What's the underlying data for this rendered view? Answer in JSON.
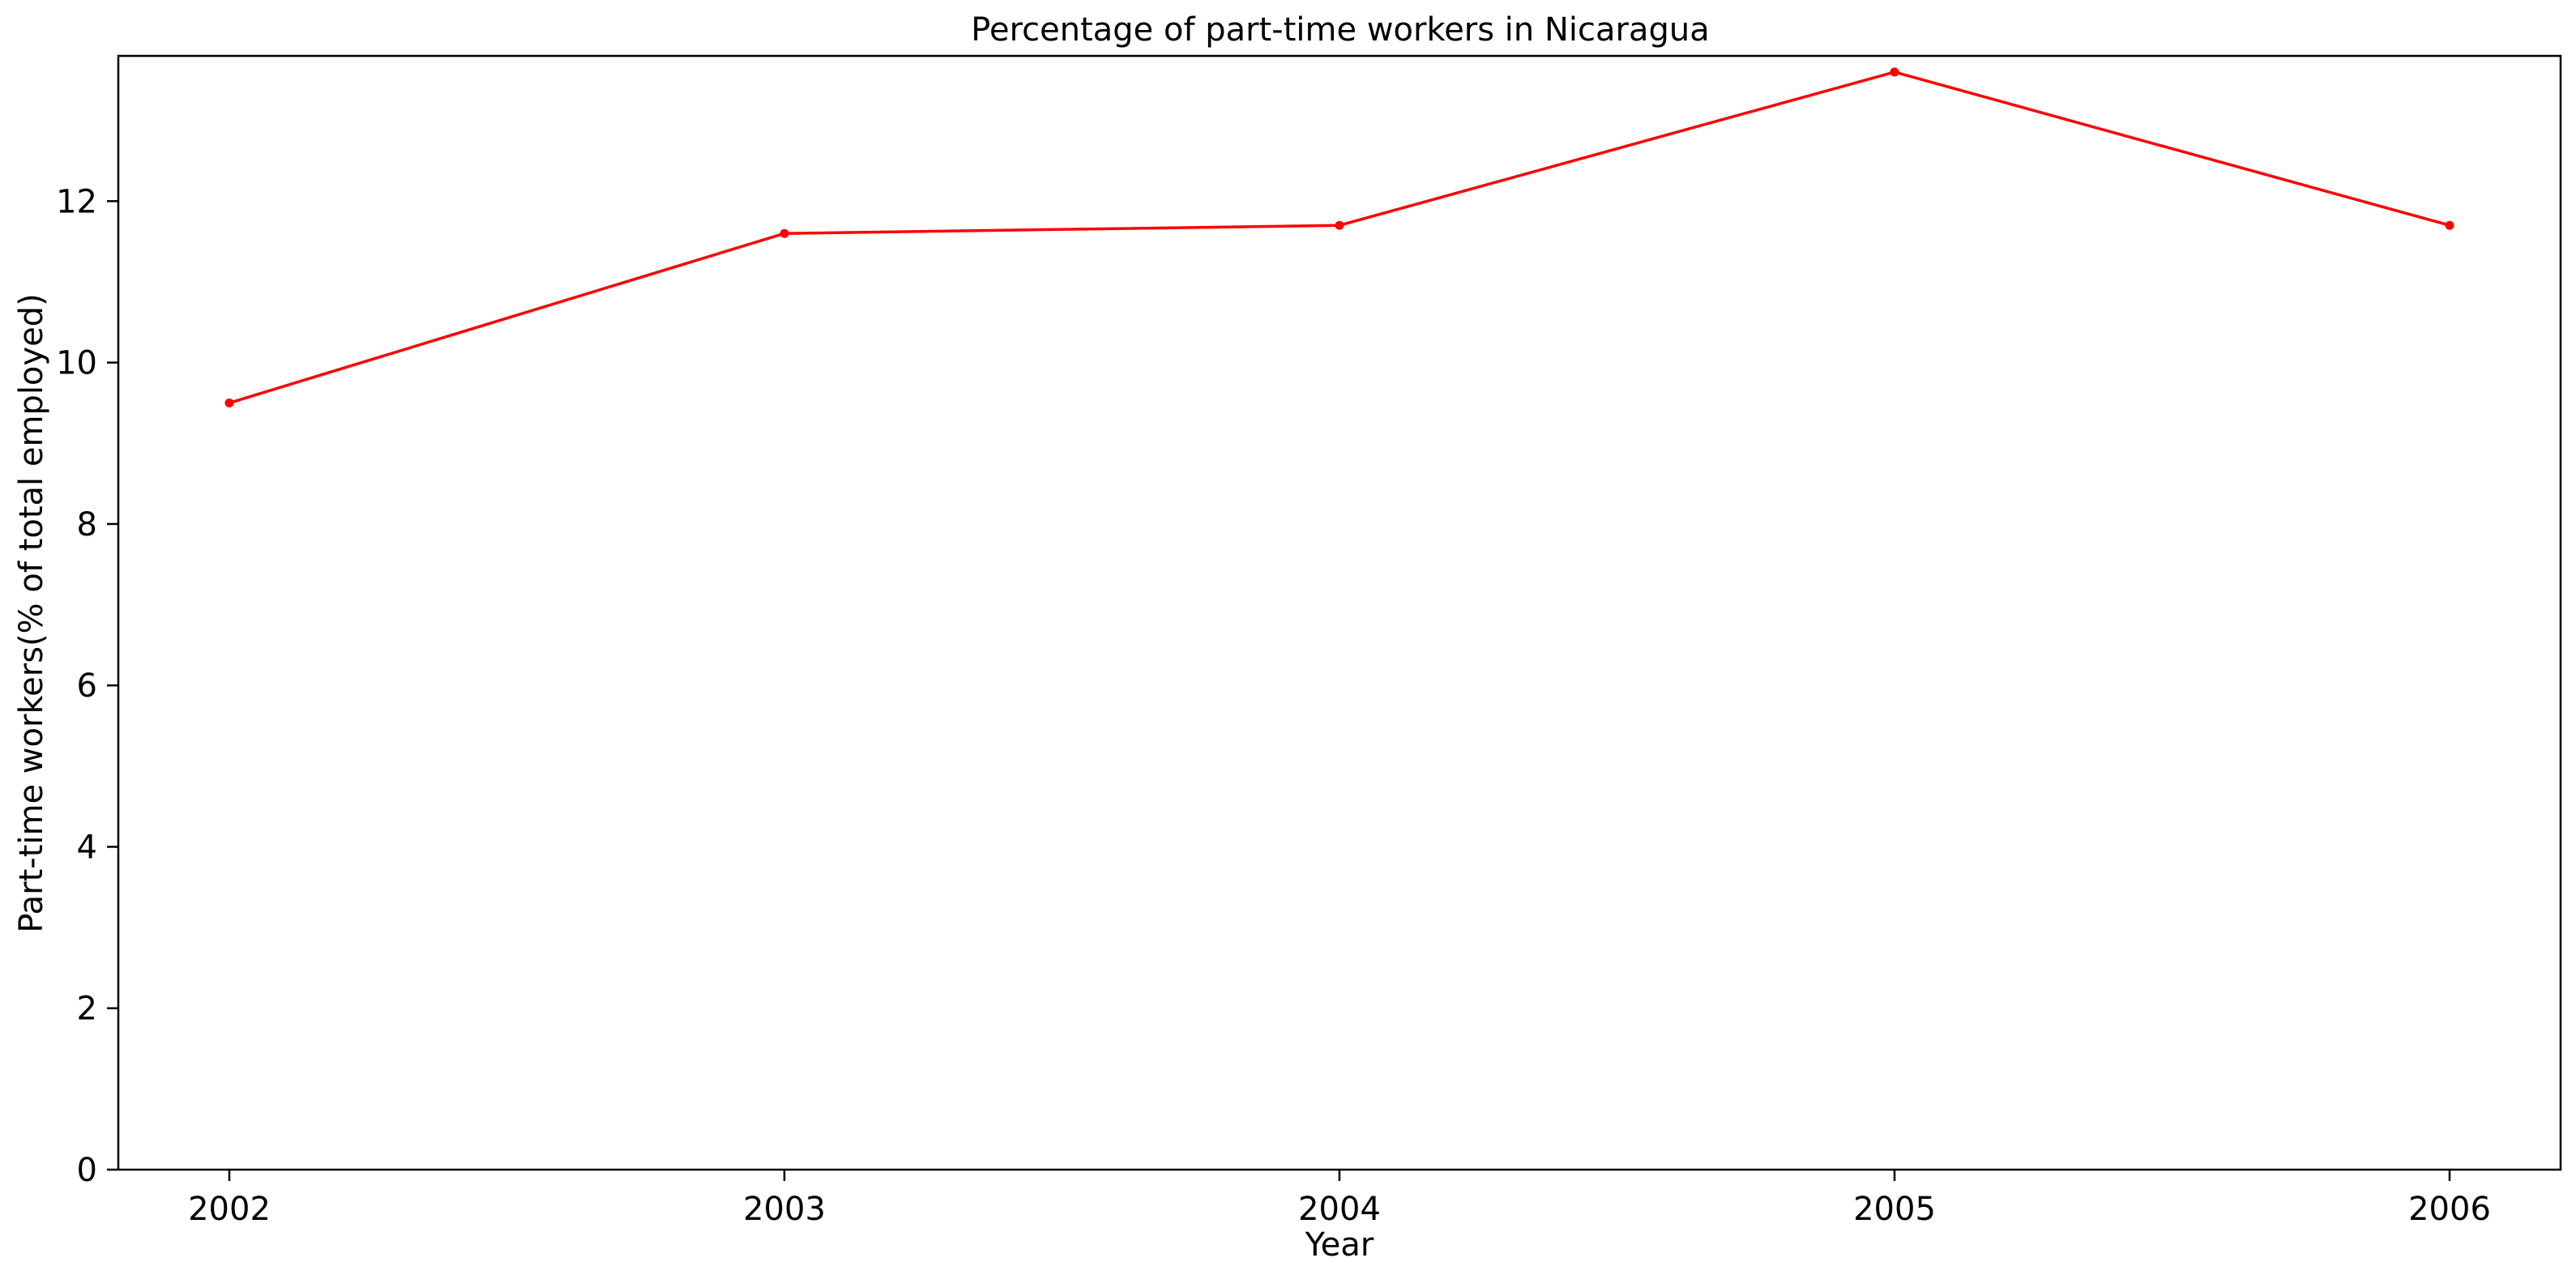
{
  "chart_data": {
    "type": "line",
    "title": "Percentage of part-time workers in Nicaragua",
    "xlabel": "Year",
    "ylabel": "Part-time workers(% of total employed)",
    "x": [
      "2002",
      "2003",
      "2004",
      "2005",
      "2006"
    ],
    "series": [
      {
        "values": [
          9.5,
          11.6,
          11.7,
          13.6,
          11.7
        ],
        "color": "#ff0000",
        "marker": "dot"
      }
    ],
    "yticks": [
      0,
      2,
      4,
      6,
      8,
      10,
      12
    ],
    "ylim": [
      0,
      13.8
    ],
    "grid": false,
    "legend": "none"
  }
}
